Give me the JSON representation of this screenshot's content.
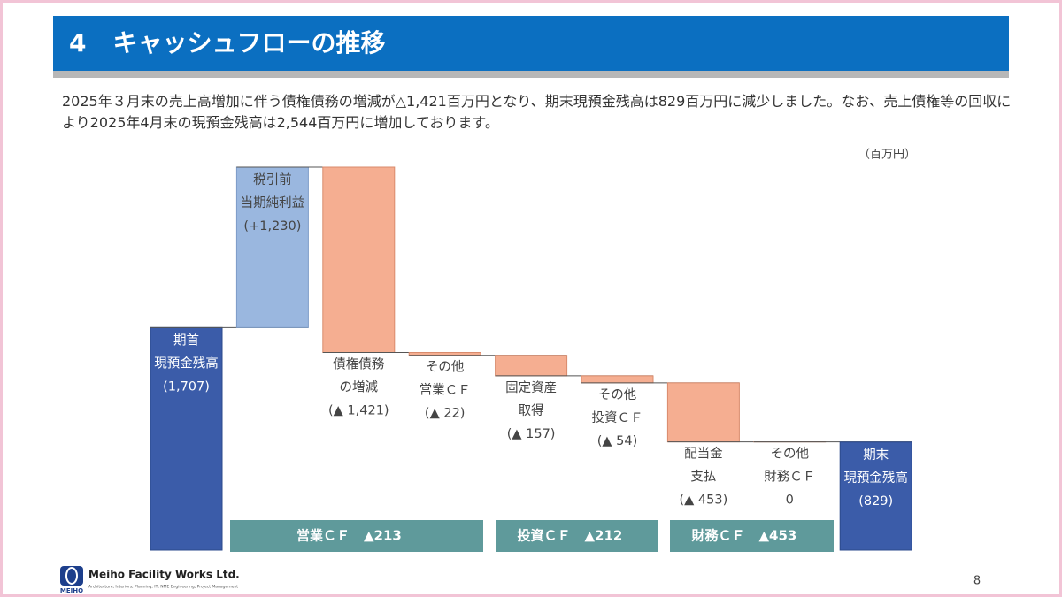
{
  "header": {
    "number": "4",
    "title": "キャッシュフローの推移"
  },
  "description": "2025年３月末の売上高増加に伴う債権債務の増減が△1,421百万円となり、期末現預金残高は829百万円に減少しました。なお、売上債権等の回収により2025年4月末の現預金残高は2,544百万円に増加しております。",
  "chart_data": {
    "type": "waterfall",
    "unit": "（百万円）",
    "categories": [
      [
        "期首",
        "現預金残高"
      ],
      [
        "税引前",
        "当期純利益"
      ],
      [
        "債権債務",
        "の増減"
      ],
      [
        "その他",
        "営業ＣＦ"
      ],
      [
        "固定資産",
        "取得"
      ],
      [
        "その他",
        "投資ＣＦ"
      ],
      [
        "配当金",
        "支払"
      ],
      [
        "その他",
        "財務ＣＦ"
      ],
      [
        "期末",
        "現預金残高"
      ]
    ],
    "values": [
      1707,
      1230,
      -1421,
      -22,
      -157,
      -54,
      -453,
      0,
      829
    ],
    "value_labels": [
      "(1,707)",
      "(+1,230)",
      "(▲ 1,421)",
      "(▲ 22)",
      "(▲ 157)",
      "(▲ 54)",
      "(▲ 453)",
      "0",
      "(829)"
    ],
    "colors": {
      "total": "#3b5ca9",
      "increase": "#9ab7df",
      "decrease": "#f5ae91"
    },
    "groups": {
      "names": [
        "営業ＣＦ",
        "投資ＣＦ",
        "財務ＣＦ"
      ],
      "values": [
        -213,
        -212,
        -453
      ],
      "value_labels": [
        "▲213",
        "▲212",
        "▲453"
      ],
      "color": "#5f9a9b"
    }
  },
  "footer": {
    "company": "Meiho Facility Works Ltd.",
    "tagline": "Architecture, Interiors, Planning, IT, NME Engineering, Project Management",
    "logo_text": "MEIHO",
    "page": "8"
  }
}
